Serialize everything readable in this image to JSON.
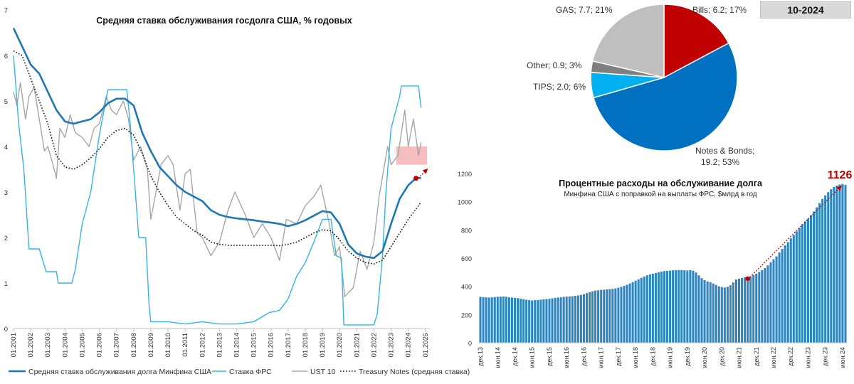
{
  "badge": "10-2024",
  "chart_data": [
    {
      "type": "line",
      "title": "Средняя ставка обслуживания госдолга США, % годовых",
      "ylim": [
        0,
        7
      ],
      "yticks": [
        "0",
        "1",
        "2",
        "3",
        "4",
        "5",
        "6",
        "7"
      ],
      "xticks": [
        "01.2001",
        "01.2002",
        "01.2003",
        "01.2004",
        "01.2005",
        "01.2006",
        "01.2007",
        "01.2008",
        "01.2009",
        "01.2010",
        "01.2011",
        "01.2012",
        "01.2013",
        "01.2014",
        "01.2015",
        "01.2016",
        "01.2017",
        "01.2018",
        "01.2019",
        "01.2020",
        "01.2021",
        "01.2022",
        "01.2023",
        "01.2024",
        "01.2025"
      ],
      "xlim": [
        2001,
        2025.3
      ],
      "highlight_band": {
        "x": [
          2023.3,
          2025.1
        ],
        "y": [
          3.6,
          4.0
        ]
      },
      "projection": {
        "from": [
          2024.45,
          3.3
        ],
        "to": [
          2025.1,
          3.5
        ]
      },
      "series": [
        {
          "name": "Средняя ставка обслуживания долга Минфина США",
          "color": "#1f77b4",
          "points": [
            [
              2001,
              6.6
            ],
            [
              2001.5,
              6.2
            ],
            [
              2002,
              5.8
            ],
            [
              2002.5,
              5.6
            ],
            [
              2003,
              5.2
            ],
            [
              2003.5,
              4.8
            ],
            [
              2004,
              4.55
            ],
            [
              2004.5,
              4.5
            ],
            [
              2005,
              4.55
            ],
            [
              2005.5,
              4.6
            ],
            [
              2006,
              4.75
            ],
            [
              2006.5,
              4.95
            ],
            [
              2007,
              5.05
            ],
            [
              2007.5,
              5.05
            ],
            [
              2008,
              4.9
            ],
            [
              2008.5,
              4.3
            ],
            [
              2009,
              3.9
            ],
            [
              2009.5,
              3.55
            ],
            [
              2010,
              3.35
            ],
            [
              2010.5,
              3.15
            ],
            [
              2011,
              3.0
            ],
            [
              2011.5,
              2.9
            ],
            [
              2012,
              2.8
            ],
            [
              2012.5,
              2.6
            ],
            [
              2013,
              2.5
            ],
            [
              2013.5,
              2.45
            ],
            [
              2014,
              2.42
            ],
            [
              2014.5,
              2.4
            ],
            [
              2015,
              2.38
            ],
            [
              2015.5,
              2.35
            ],
            [
              2016,
              2.33
            ],
            [
              2016.5,
              2.3
            ],
            [
              2017,
              2.25
            ],
            [
              2017.5,
              2.3
            ],
            [
              2018,
              2.38
            ],
            [
              2018.5,
              2.48
            ],
            [
              2019,
              2.58
            ],
            [
              2019.5,
              2.55
            ],
            [
              2020,
              2.3
            ],
            [
              2020.5,
              1.85
            ],
            [
              2021,
              1.65
            ],
            [
              2021.5,
              1.58
            ],
            [
              2022,
              1.55
            ],
            [
              2022.5,
              1.7
            ],
            [
              2023,
              2.3
            ],
            [
              2023.5,
              2.85
            ],
            [
              2024,
              3.15
            ],
            [
              2024.5,
              3.32
            ],
            [
              2024.75,
              3.3
            ]
          ]
        },
        {
          "name": "Ставка ФРС",
          "color": "#33b5e5",
          "points": [
            [
              2001,
              6.0
            ],
            [
              2001.3,
              4.5
            ],
            [
              2001.6,
              3.5
            ],
            [
              2001.9,
              1.75
            ],
            [
              2002.5,
              1.75
            ],
            [
              2002.9,
              1.25
            ],
            [
              2003.5,
              1.25
            ],
            [
              2003.6,
              1.0
            ],
            [
              2004.4,
              1.0
            ],
            [
              2004.6,
              1.3
            ],
            [
              2005,
              2.3
            ],
            [
              2005.5,
              3.0
            ],
            [
              2006,
              4.25
            ],
            [
              2006.5,
              5.25
            ],
            [
              2007.6,
              5.25
            ],
            [
              2007.8,
              4.5
            ],
            [
              2008,
              3.5
            ],
            [
              2008.3,
              2.0
            ],
            [
              2008.7,
              2.0
            ],
            [
              2008.9,
              0.5
            ],
            [
              2009,
              0.15
            ],
            [
              2010,
              0.15
            ],
            [
              2011,
              0.1
            ],
            [
              2012,
              0.15
            ],
            [
              2013,
              0.1
            ],
            [
              2014,
              0.1
            ],
            [
              2015,
              0.15
            ],
            [
              2015.9,
              0.35
            ],
            [
              2016.5,
              0.4
            ],
            [
              2017,
              0.65
            ],
            [
              2017.5,
              1.15
            ],
            [
              2018,
              1.45
            ],
            [
              2018.5,
              1.9
            ],
            [
              2019,
              2.4
            ],
            [
              2019.5,
              2.4
            ],
            [
              2019.8,
              1.6
            ],
            [
              2020.1,
              1.55
            ],
            [
              2020.25,
              0.08
            ],
            [
              2021,
              0.08
            ],
            [
              2022,
              0.08
            ],
            [
              2022.2,
              0.33
            ],
            [
              2022.5,
              1.6
            ],
            [
              2022.7,
              3.0
            ],
            [
              2023,
              4.4
            ],
            [
              2023.5,
              5.1
            ],
            [
              2023.6,
              5.33
            ],
            [
              2024.6,
              5.33
            ],
            [
              2024.75,
              4.85
            ]
          ]
        },
        {
          "name": "UST 10",
          "color": "#a6a6a6",
          "points": [
            [
              2001,
              5.2
            ],
            [
              2001.2,
              4.9
            ],
            [
              2001.4,
              5.4
            ],
            [
              2001.7,
              4.6
            ],
            [
              2001.9,
              5.1
            ],
            [
              2002.2,
              5.3
            ],
            [
              2002.5,
              4.6
            ],
            [
              2002.8,
              3.9
            ],
            [
              2003,
              4.0
            ],
            [
              2003.3,
              3.6
            ],
            [
              2003.5,
              3.3
            ],
            [
              2003.7,
              4.4
            ],
            [
              2004,
              4.2
            ],
            [
              2004.3,
              4.7
            ],
            [
              2004.6,
              4.3
            ],
            [
              2005,
              4.2
            ],
            [
              2005.4,
              4.0
            ],
            [
              2005.7,
              4.4
            ],
            [
              2006,
              4.5
            ],
            [
              2006.4,
              5.1
            ],
            [
              2006.7,
              4.8
            ],
            [
              2007,
              4.7
            ],
            [
              2007.4,
              5.0
            ],
            [
              2007.7,
              4.6
            ],
            [
              2008,
              3.7
            ],
            [
              2008.4,
              4.0
            ],
            [
              2008.8,
              3.5
            ],
            [
              2009,
              2.4
            ],
            [
              2009.3,
              3.0
            ],
            [
              2009.6,
              3.6
            ],
            [
              2010,
              3.8
            ],
            [
              2010.3,
              3.6
            ],
            [
              2010.7,
              2.6
            ],
            [
              2011,
              3.4
            ],
            [
              2011.3,
              3.5
            ],
            [
              2011.7,
              2.1
            ],
            [
              2012,
              2.0
            ],
            [
              2012.5,
              1.6
            ],
            [
              2013,
              1.9
            ],
            [
              2013.5,
              2.6
            ],
            [
              2013.9,
              3.0
            ],
            [
              2014.5,
              2.5
            ],
            [
              2015,
              2.0
            ],
            [
              2015.5,
              2.3
            ],
            [
              2016,
              2.0
            ],
            [
              2016.5,
              1.5
            ],
            [
              2016.9,
              2.4
            ],
            [
              2017.5,
              2.3
            ],
            [
              2018,
              2.7
            ],
            [
              2018.5,
              2.9
            ],
            [
              2018.9,
              3.15
            ],
            [
              2019.4,
              2.3
            ],
            [
              2019.7,
              1.6
            ],
            [
              2020,
              1.8
            ],
            [
              2020.3,
              0.7
            ],
            [
              2020.8,
              0.9
            ],
            [
              2021.2,
              1.7
            ],
            [
              2021.6,
              1.3
            ],
            [
              2022,
              1.9
            ],
            [
              2022.3,
              2.9
            ],
            [
              2022.8,
              4.0
            ],
            [
              2023,
              3.6
            ],
            [
              2023.4,
              3.8
            ],
            [
              2023.8,
              4.8
            ],
            [
              2024,
              4.0
            ],
            [
              2024.3,
              4.6
            ],
            [
              2024.6,
              3.8
            ],
            [
              2024.75,
              4.1
            ]
          ]
        },
        {
          "name": "Treasury Notes (средняя ставка)",
          "color": "#111111",
          "dashed": true,
          "points": [
            [
              2001,
              6.1
            ],
            [
              2001.5,
              6.0
            ],
            [
              2002,
              5.5
            ],
            [
              2002.5,
              5.0
            ],
            [
              2003,
              4.5
            ],
            [
              2003.5,
              3.8
            ],
            [
              2004,
              3.55
            ],
            [
              2004.5,
              3.5
            ],
            [
              2005,
              3.6
            ],
            [
              2005.5,
              3.75
            ],
            [
              2006,
              3.95
            ],
            [
              2006.5,
              4.2
            ],
            [
              2007,
              4.35
            ],
            [
              2007.5,
              4.4
            ],
            [
              2008,
              4.25
            ],
            [
              2008.5,
              3.85
            ],
            [
              2009,
              3.35
            ],
            [
              2009.5,
              3.0
            ],
            [
              2010,
              2.7
            ],
            [
              2010.5,
              2.45
            ],
            [
              2011,
              2.3
            ],
            [
              2011.5,
              2.15
            ],
            [
              2012,
              2.05
            ],
            [
              2012.5,
              1.9
            ],
            [
              2013,
              1.85
            ],
            [
              2013.5,
              1.83
            ],
            [
              2014,
              1.83
            ],
            [
              2015,
              1.83
            ],
            [
              2016,
              1.83
            ],
            [
              2016.5,
              1.82
            ],
            [
              2017,
              1.85
            ],
            [
              2017.5,
              1.9
            ],
            [
              2018,
              2.0
            ],
            [
              2018.5,
              2.1
            ],
            [
              2019,
              2.17
            ],
            [
              2019.5,
              2.15
            ],
            [
              2020,
              1.95
            ],
            [
              2020.5,
              1.7
            ],
            [
              2021,
              1.55
            ],
            [
              2021.5,
              1.45
            ],
            [
              2022,
              1.42
            ],
            [
              2022.5,
              1.5
            ],
            [
              2023,
              1.8
            ],
            [
              2023.5,
              2.1
            ],
            [
              2024,
              2.4
            ],
            [
              2024.5,
              2.65
            ],
            [
              2024.75,
              2.78
            ]
          ]
        }
      ],
      "legend": {
        "placement": "bottom"
      }
    },
    {
      "type": "pie",
      "title": "10-2024",
      "slices": [
        {
          "label": "Bills; 6.2; 17%",
          "value": 6.2,
          "pct": 17,
          "color": "#c00000"
        },
        {
          "label": "Notes & Bonds; 19.2; 53%",
          "value": 19.2,
          "pct": 53,
          "color": "#0070c0"
        },
        {
          "label": "TIPS; 2.0; 6%",
          "value": 2.0,
          "pct": 6,
          "color": "#00b0f0"
        },
        {
          "label": "Other; 0.9; 3%",
          "value": 0.9,
          "pct": 3,
          "color": "#7f7f7f"
        },
        {
          "label": "GAS; 7.7; 21%",
          "value": 7.7,
          "pct": 21,
          "color": "#bfbfbf"
        }
      ],
      "nb_label_line1": "Notes & Bonds;",
      "nb_label_line2": "19.2; 53%"
    },
    {
      "type": "bar",
      "title": "Процентные расходы на обслуживание долга",
      "subtitle": "Минфина США с поправкой на выплаты ФРС, $млрд в год",
      "ylim": [
        0,
        1200
      ],
      "yticks": [
        "0",
        "200",
        "400",
        "600",
        "800",
        "1000",
        "1200"
      ],
      "xticks": [
        "дек.13",
        "июн.14",
        "дек.14",
        "июн.15",
        "дек.15",
        "июн.16",
        "дек.16",
        "июн.17",
        "дек.17",
        "июн.18",
        "дек.18",
        "июн.19",
        "дек.19",
        "июн.20",
        "дек.20",
        "июн.21",
        "дек.21",
        "июн.22",
        "дек.22",
        "июн.23",
        "дек.23",
        "июн.24"
      ],
      "callout": "1126",
      "trend_from_index": 93,
      "bar_color": "#2e86c1",
      "values": [
        325,
        323,
        322,
        320,
        322,
        324,
        326,
        327,
        328,
        326,
        322,
        320,
        318,
        316,
        312,
        308,
        305,
        302,
        300,
        302,
        303,
        305,
        308,
        310,
        312,
        315,
        318,
        320,
        322,
        325,
        327,
        328,
        330,
        333,
        336,
        340,
        345,
        352,
        358,
        365,
        370,
        372,
        375,
        376,
        378,
        380,
        382,
        385,
        390,
        396,
        403,
        411,
        420,
        430,
        440,
        450,
        460,
        470,
        478,
        485,
        490,
        495,
        500,
        505,
        508,
        510,
        512,
        514,
        515,
        516,
        516,
        514,
        512,
        515,
        511,
        498,
        478,
        458,
        444,
        435,
        430,
        420,
        410,
        400,
        395,
        392,
        397,
        408,
        428,
        448,
        455,
        460,
        464,
        465,
        470,
        480,
        490,
        502,
        515,
        530,
        548,
        570,
        592,
        612,
        640,
        665,
        690,
        714,
        740,
        764,
        790,
        815,
        840,
        860,
        880,
        905,
        930,
        960,
        990,
        1020,
        1045,
        1068,
        1088,
        1105,
        1115,
        1122,
        1126,
        1120
      ]
    }
  ]
}
